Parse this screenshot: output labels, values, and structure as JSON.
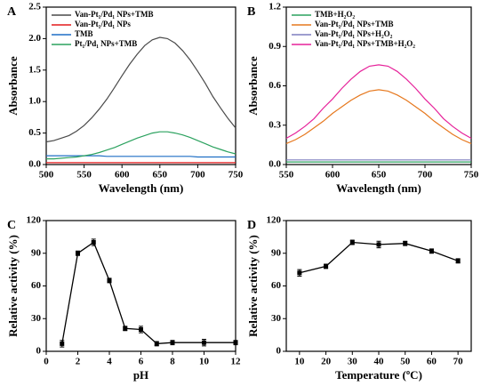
{
  "chart_data": [
    {
      "panel_label": "A",
      "type": "line",
      "xlabel": "Wavelength (nm)",
      "ylabel": "Absorbance",
      "legend": "upper left",
      "x": [
        500,
        510,
        520,
        530,
        540,
        550,
        560,
        570,
        580,
        590,
        600,
        610,
        620,
        630,
        640,
        650,
        660,
        670,
        680,
        690,
        700,
        710,
        720,
        730,
        740,
        750
      ],
      "xlim": [
        500,
        750
      ],
      "xticks": [
        500,
        550,
        600,
        650,
        700,
        750
      ],
      "ylim": [
        0,
        2.5
      ],
      "yticks": [
        {
          "value": 0,
          "label": "0.0"
        },
        0.5,
        {
          "value": 1,
          "label": "1.0"
        },
        1.5,
        {
          "value": 2,
          "label": "2.0"
        },
        2.5
      ],
      "series": [
        {
          "name": "Van-Pt₁/Pd₁ NPs+TMB",
          "color": "#4a4a4a",
          "values": [
            0.36,
            0.38,
            0.42,
            0.46,
            0.53,
            0.62,
            0.74,
            0.88,
            1.04,
            1.22,
            1.41,
            1.59,
            1.75,
            1.89,
            1.98,
            2.02,
            2.0,
            1.93,
            1.81,
            1.66,
            1.48,
            1.29,
            1.08,
            0.9,
            0.73,
            0.58
          ]
        },
        {
          "name": "Van-Pt₁/Pd₁ NPs",
          "color": "#e41a1c",
          "values": [
            0.03,
            0.03,
            0.03,
            0.03,
            0.03,
            0.03,
            0.03,
            0.03,
            0.03,
            0.03,
            0.03,
            0.03,
            0.03,
            0.03,
            0.03,
            0.03,
            0.03,
            0.03,
            0.03,
            0.03,
            0.03,
            0.03,
            0.03,
            0.03,
            0.03,
            0.03
          ]
        },
        {
          "name": "TMB",
          "color": "#1f6fc5",
          "values": [
            0.14,
            0.14,
            0.14,
            0.14,
            0.14,
            0.14,
            0.14,
            0.14,
            0.13,
            0.13,
            0.13,
            0.13,
            0.13,
            0.13,
            0.13,
            0.13,
            0.13,
            0.13,
            0.13,
            0.13,
            0.12,
            0.12,
            0.12,
            0.12,
            0.12,
            0.12
          ]
        },
        {
          "name": "Pt₁/Pd₁ NPs+TMB",
          "color": "#2ca25f",
          "values": [
            0.09,
            0.09,
            0.1,
            0.11,
            0.12,
            0.14,
            0.16,
            0.19,
            0.23,
            0.27,
            0.32,
            0.37,
            0.42,
            0.46,
            0.5,
            0.52,
            0.52,
            0.5,
            0.47,
            0.43,
            0.38,
            0.33,
            0.28,
            0.24,
            0.2,
            0.17
          ]
        }
      ]
    },
    {
      "panel_label": "B",
      "type": "line",
      "xlabel": "Wavelength (nm)",
      "ylabel": "Absorbance",
      "legend": "upper left",
      "x": [
        550,
        560,
        570,
        580,
        590,
        600,
        610,
        620,
        630,
        640,
        650,
        660,
        670,
        680,
        690,
        700,
        710,
        720,
        730,
        740,
        750
      ],
      "xlim": [
        550,
        750
      ],
      "xticks": [
        550,
        600,
        650,
        700,
        750
      ],
      "ylim": [
        0,
        1.2
      ],
      "yticks": [
        {
          "value": 0,
          "label": "0.0"
        },
        0.3,
        0.6,
        0.9,
        1.2
      ],
      "series": [
        {
          "name": "TMB+H₂O₂",
          "color": "#2ca25f",
          "values": [
            0.02,
            0.02,
            0.02,
            0.02,
            0.02,
            0.02,
            0.02,
            0.02,
            0.02,
            0.02,
            0.02,
            0.02,
            0.02,
            0.02,
            0.02,
            0.02,
            0.02,
            0.02,
            0.02,
            0.02,
            0.02
          ]
        },
        {
          "name": "Van-Pt₁/Pd₁ NPs+TMB",
          "color": "#e6781e",
          "values": [
            0.16,
            0.19,
            0.23,
            0.28,
            0.33,
            0.39,
            0.44,
            0.49,
            0.53,
            0.56,
            0.57,
            0.56,
            0.53,
            0.49,
            0.44,
            0.39,
            0.33,
            0.28,
            0.23,
            0.19,
            0.16
          ]
        },
        {
          "name": "Van-Pt₁/Pd₁ NPs+H₂O₂",
          "color": "#7f7fbf",
          "values": [
            0.035,
            0.035,
            0.035,
            0.035,
            0.035,
            0.035,
            0.035,
            0.035,
            0.035,
            0.035,
            0.035,
            0.035,
            0.035,
            0.035,
            0.035,
            0.035,
            0.035,
            0.035,
            0.035,
            0.035,
            0.035
          ]
        },
        {
          "name": "Van-Pt₁/Pd₁ NPs+TMB+H₂O₂",
          "color": "#e6229a",
          "values": [
            0.2,
            0.24,
            0.29,
            0.35,
            0.43,
            0.5,
            0.58,
            0.65,
            0.71,
            0.75,
            0.76,
            0.75,
            0.71,
            0.65,
            0.58,
            0.5,
            0.43,
            0.35,
            0.29,
            0.24,
            0.2
          ]
        }
      ]
    },
    {
      "panel_label": "C",
      "type": "errorbar",
      "xlabel": "pH",
      "ylabel": "Relative activity (%)",
      "color": "#000000",
      "x": [
        1,
        2,
        3,
        4,
        5,
        6,
        7,
        8,
        10,
        12
      ],
      "values": [
        7,
        90,
        100,
        65,
        21,
        20,
        7,
        8,
        8,
        8
      ],
      "errors": [
        3,
        2,
        3,
        2,
        2,
        3,
        2,
        2,
        3,
        2
      ],
      "xlim": [
        0,
        12
      ],
      "xticks": [
        0,
        2,
        4,
        6,
        8,
        10,
        12
      ],
      "ylim": [
        0,
        120
      ],
      "yticks": [
        0,
        30,
        60,
        90,
        120
      ]
    },
    {
      "panel_label": "D",
      "type": "errorbar",
      "xlabel": "Temperature (ºC)",
      "ylabel": "Relative activity (%)",
      "color": "#000000",
      "x": [
        10,
        20,
        30,
        40,
        50,
        60,
        70
      ],
      "values": [
        72,
        78,
        100,
        98,
        99,
        92,
        83
      ],
      "errors": [
        3,
        2,
        2,
        3,
        2,
        2,
        2
      ],
      "xlim": [
        5,
        75
      ],
      "xticks": [
        10,
        20,
        30,
        40,
        50,
        60,
        70
      ],
      "ylim": [
        0,
        120
      ],
      "yticks": [
        0,
        30,
        60,
        90,
        120
      ]
    }
  ]
}
